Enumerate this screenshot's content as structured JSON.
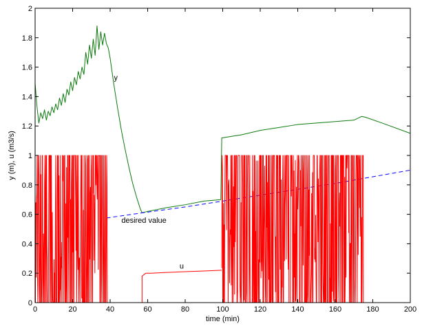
{
  "chart_data": {
    "type": "line",
    "xlabel": "time (min)",
    "ylabel": "y (m), u (m3/s)",
    "xlim": [
      0,
      200
    ],
    "ylim": [
      0,
      2
    ],
    "xticks": [
      "0",
      "20",
      "40",
      "60",
      "80",
      "100",
      "120",
      "140",
      "160",
      "180",
      "200"
    ],
    "yticks": [
      "0",
      "0.2",
      "0.4",
      "0.6",
      "0.8",
      "1",
      "1.2",
      "1.4",
      "1.6",
      "1.8",
      "2"
    ],
    "grid": false,
    "legend": "none",
    "annotations": [
      {
        "text": "y",
        "x": 42,
        "y": 1.53
      },
      {
        "text": "desired value",
        "x": 46,
        "y": 0.56
      },
      {
        "text": "u",
        "x": 77,
        "y": 0.25
      }
    ],
    "series": [
      {
        "color": "#0a7a0a",
        "style": "solid",
        "note_series": "y",
        "x": [
          0,
          1,
          2,
          3,
          4,
          5,
          6,
          7,
          8,
          9,
          10,
          11,
          12,
          13,
          14,
          15,
          16,
          17,
          18,
          19,
          20,
          21,
          22,
          23,
          24,
          25,
          26,
          27,
          28,
          29,
          30,
          31,
          32,
          33,
          34,
          35,
          36,
          37,
          38,
          39,
          40,
          42,
          44,
          46,
          48,
          50,
          52,
          54,
          56,
          57,
          60,
          70,
          80,
          90,
          99,
          99.5,
          100,
          105,
          110,
          120,
          130,
          140,
          150,
          160,
          170,
          174,
          176,
          185,
          200
        ],
        "values": [
          1.49,
          1.33,
          1.22,
          1.29,
          1.25,
          1.31,
          1.24,
          1.3,
          1.27,
          1.33,
          1.29,
          1.35,
          1.31,
          1.39,
          1.34,
          1.42,
          1.36,
          1.45,
          1.41,
          1.5,
          1.44,
          1.53,
          1.48,
          1.57,
          1.52,
          1.6,
          1.55,
          1.7,
          1.62,
          1.75,
          1.66,
          1.79,
          1.68,
          1.88,
          1.72,
          1.84,
          1.75,
          1.83,
          1.76,
          1.73,
          1.66,
          1.48,
          1.32,
          1.17,
          1.04,
          0.92,
          0.81,
          0.72,
          0.64,
          0.61,
          0.62,
          0.645,
          0.665,
          0.69,
          0.7,
          1.12,
          1.12,
          1.13,
          1.14,
          1.17,
          1.19,
          1.21,
          1.22,
          1.23,
          1.24,
          1.265,
          1.26,
          1.22,
          1.15
        ]
      },
      {
        "color": "#0000ff",
        "style": "dashed",
        "note_series": "desired value",
        "x": [
          38,
          60,
          80,
          100,
          120,
          140,
          160,
          180,
          200
        ],
        "values": [
          0.575,
          0.615,
          0.65,
          0.69,
          0.73,
          0.77,
          0.81,
          0.855,
          0.9
        ]
      },
      {
        "color": "#ff0000",
        "style": "solid",
        "note_series": "u",
        "segments": [
          {
            "kind": "noisy-bang",
            "x_start": 0,
            "x_end": 38.5,
            "low": 0,
            "high": 1
          },
          {
            "kind": "line",
            "x": [
              38.5,
              57,
              57,
              59,
              62,
              70,
              80,
              90,
              99.5
            ],
            "values": [
              0,
              0,
              0.18,
              0.2,
              0.2,
              0.205,
              0.21,
              0.215,
              0.22
            ]
          },
          {
            "kind": "noisy-bang",
            "x_start": 99.5,
            "x_end": 175,
            "low": 0,
            "high": 1
          },
          {
            "kind": "line",
            "x": [
              175,
              200
            ],
            "values": [
              0,
              0
            ]
          }
        ]
      }
    ]
  }
}
